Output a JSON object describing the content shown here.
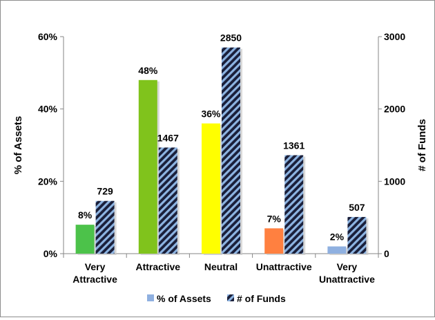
{
  "chart_data": {
    "type": "bar",
    "categories": [
      [
        "Very",
        "Attractive"
      ],
      [
        "Attractive"
      ],
      [
        "Neutral"
      ],
      [
        "Unattractive"
      ],
      [
        "Very",
        "Unattractive"
      ]
    ],
    "series": [
      {
        "name": "% of Assets",
        "axis": "left",
        "values": [
          8,
          48,
          36,
          7,
          2
        ],
        "labels": [
          "8%",
          "48%",
          "36%",
          "7%",
          "2%"
        ],
        "colors": [
          "#4cc24a",
          "#80c31c",
          "#ffff00",
          "#ff8040",
          "#8fb0e0"
        ],
        "legend_color": "#8fb0e0"
      },
      {
        "name": "# of Funds",
        "axis": "right",
        "values": [
          729,
          1467,
          2850,
          1361,
          507
        ],
        "labels": [
          "729",
          "1467",
          "2850",
          "1361",
          "507"
        ],
        "pattern": "diagonal-stripes",
        "stripe_colors": [
          "#1a1f3a",
          "#8db4e2"
        ]
      }
    ],
    "y_left": {
      "label": "% of Assets",
      "ylim": [
        0,
        60
      ],
      "ticks": [
        0,
        20,
        40,
        60
      ],
      "tick_labels": [
        "0%",
        "20%",
        "40%",
        "60%"
      ]
    },
    "y_right": {
      "label": "# of Funds",
      "ylim": [
        0,
        3000
      ],
      "ticks": [
        0,
        1000,
        2000,
        3000
      ],
      "tick_labels": [
        "0",
        "1000",
        "2000",
        "3000"
      ]
    },
    "grid": false,
    "legend": "bottom-center"
  }
}
